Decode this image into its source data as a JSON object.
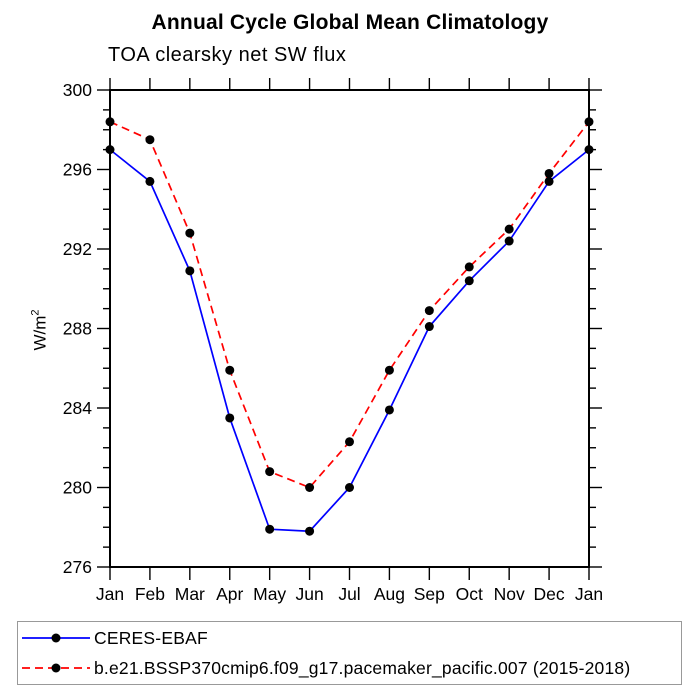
{
  "figure": {
    "title": "Annual Cycle Global Mean Climatology",
    "subtitle": "TOA clearsky net SW flux",
    "ylabel_base": "W/m",
    "ylabel_sup": "2"
  },
  "chart_data": {
    "type": "line",
    "title": "Annual Cycle Global Mean Climatology",
    "subtitle": "TOA clearsky net SW flux",
    "xlabel": "",
    "ylabel": "W/m^2",
    "ylim": [
      276,
      300
    ],
    "yticks_major": [
      276,
      280,
      284,
      288,
      292,
      296,
      300
    ],
    "ytick_minor_step": 1,
    "grid": false,
    "legend_position": "bottom-left-box",
    "frame_color": "#000000",
    "categories": [
      "Jan",
      "Feb",
      "Mar",
      "Apr",
      "May",
      "Jun",
      "Jul",
      "Aug",
      "Sep",
      "Oct",
      "Nov",
      "Dec",
      "Jan"
    ],
    "series": [
      {
        "name": "CERES-EBAF",
        "line_color": "#0000ff",
        "line_style": "solid",
        "marker": "filled-circle",
        "marker_color": "#000000",
        "values": [
          297.0,
          295.4,
          290.9,
          283.5,
          277.9,
          277.8,
          280.0,
          283.9,
          288.1,
          290.4,
          292.4,
          295.4,
          297.0
        ]
      },
      {
        "name": "b.e21.BSSP370cmip6.f09_g17.pacemaker_pacific.007 (2015-2018)",
        "line_color": "#ff0000",
        "line_style": "dashed",
        "marker": "filled-circle",
        "marker_color": "#000000",
        "values": [
          298.4,
          297.5,
          292.8,
          285.9,
          280.8,
          280.0,
          282.3,
          285.9,
          288.9,
          291.1,
          293.0,
          295.8,
          298.4
        ]
      }
    ]
  }
}
